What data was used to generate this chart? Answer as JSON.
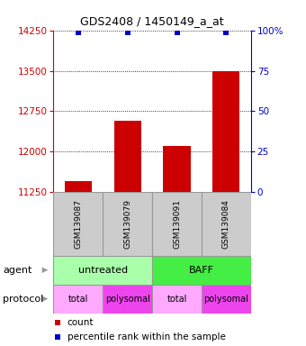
{
  "title": "GDS2408 / 1450149_a_at",
  "samples": [
    "GSM139087",
    "GSM139079",
    "GSM139091",
    "GSM139084"
  ],
  "bar_values": [
    11450,
    12580,
    12100,
    13500
  ],
  "percentile_values": [
    99,
    99,
    99,
    99
  ],
  "ylim_left": [
    11250,
    14250
  ],
  "yticks_left": [
    11250,
    12000,
    12750,
    13500,
    14250
  ],
  "yticks_right": [
    0,
    25,
    50,
    75,
    100
  ],
  "ylim_right": [
    0,
    100
  ],
  "bar_color": "#cc0000",
  "percentile_color": "#0000cc",
  "agent_row": [
    {
      "label": "untreated",
      "span": [
        0,
        2
      ],
      "color": "#aaffaa"
    },
    {
      "label": "BAFF",
      "span": [
        2,
        4
      ],
      "color": "#44ee44"
    }
  ],
  "protocol_row": [
    {
      "label": "total",
      "span": [
        0,
        1
      ],
      "color": "#ffaaff"
    },
    {
      "label": "polysomal",
      "span": [
        1,
        2
      ],
      "color": "#ee44ee"
    },
    {
      "label": "total",
      "span": [
        2,
        3
      ],
      "color": "#ffaaff"
    },
    {
      "label": "polysomal",
      "span": [
        3,
        4
      ],
      "color": "#ee44ee"
    }
  ],
  "legend_red_label": "count",
  "legend_blue_label": "percentile rank within the sample",
  "agent_label": "agent",
  "protocol_label": "protocol",
  "title_color": "#000000",
  "left_tick_color": "#cc0000",
  "right_tick_color": "#0000cc",
  "grid_color": "#000000",
  "bar_width": 0.55,
  "sample_box_color": "#cccccc",
  "sample_box_edge": "#999999",
  "arrow_color": "#999999"
}
